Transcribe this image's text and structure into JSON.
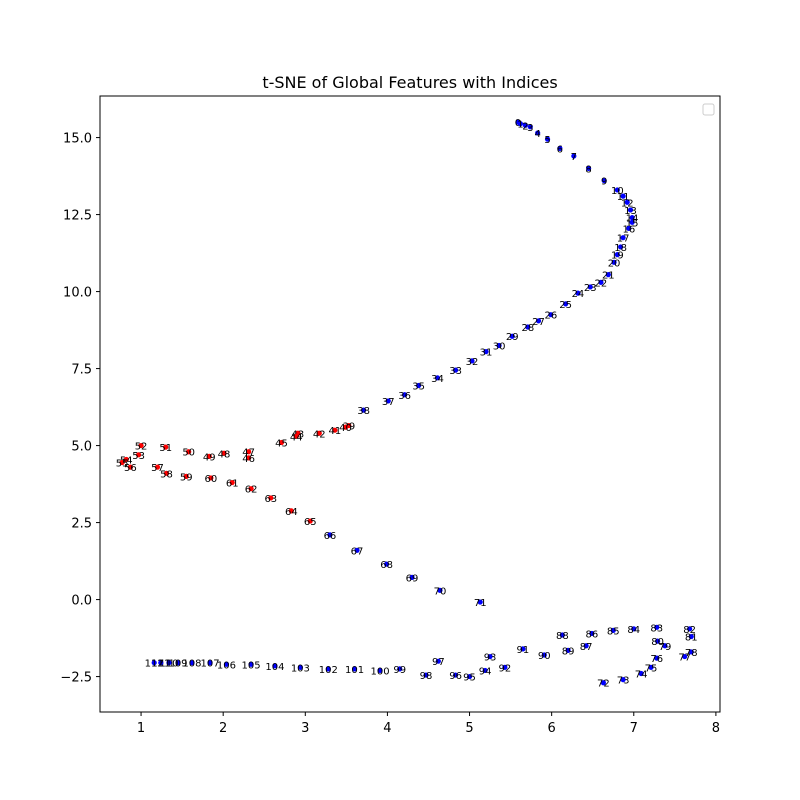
{
  "chart_data": {
    "type": "scatter",
    "title": "t-SNE of Global Features with Indices",
    "xlabel": "",
    "ylabel": "",
    "xlim": [
      0.5,
      8.05
    ],
    "ylim": [
      -3.65,
      16.35
    ],
    "xticks": [
      1,
      2,
      3,
      4,
      5,
      6,
      7,
      8
    ],
    "xtick_labels": [
      "1",
      "2",
      "3",
      "4",
      "5",
      "6",
      "7",
      "8"
    ],
    "yticks": [
      -2.5,
      0.0,
      2.5,
      5.0,
      7.5,
      10.0,
      12.5,
      15.0
    ],
    "ytick_labels": [
      "−2.5",
      "0.0",
      "2.5",
      "5.0",
      "7.5",
      "10.0",
      "12.5",
      "15.0"
    ],
    "grid": false,
    "legend": "top-right (empty)",
    "colors": {
      "blue": "#0000ff",
      "red": "#ff0000",
      "axis": "#000000"
    },
    "x": [
      5.59,
      5.62,
      5.68,
      5.74,
      5.83,
      5.95,
      6.1,
      6.27,
      6.45,
      6.64,
      6.8,
      6.87,
      6.92,
      6.96,
      6.98,
      6.98,
      6.94,
      6.87,
      6.84,
      6.8,
      6.76,
      6.69,
      6.6,
      6.47,
      6.32,
      6.17,
      5.99,
      5.84,
      5.71,
      5.52,
      5.36,
      5.2,
      5.03,
      4.83,
      4.61,
      4.38,
      4.21,
      4.01,
      3.71,
      3.53,
      3.49,
      3.36,
      3.17,
      2.91,
      2.89,
      2.71,
      2.31,
      2.31,
      2.01,
      1.83,
      1.58,
      1.3,
      1.0,
      0.97,
      0.82,
      0.77,
      0.87,
      1.2,
      1.31,
      1.55,
      1.85,
      2.11,
      2.34,
      2.58,
      2.83,
      3.06,
      3.3,
      3.63,
      3.99,
      4.3,
      4.64,
      5.13,
      6.63,
      6.87,
      7.09,
      7.21,
      7.28,
      7.62,
      7.7,
      7.38,
      7.29,
      7.7,
      7.68,
      7.28,
      7.0,
      6.75,
      6.49,
      6.42,
      6.13,
      6.2,
      5.91,
      5.65,
      5.43,
      5.25,
      5.19,
      5.0,
      4.83,
      4.62,
      4.47,
      4.15,
      3.91,
      3.6,
      3.28,
      2.94,
      2.63,
      2.34,
      2.04,
      1.84,
      1.62,
      1.45,
      1.34,
      1.24,
      1.16
    ],
    "y": [
      15.5,
      15.45,
      15.4,
      15.35,
      15.15,
      14.95,
      14.65,
      14.4,
      14.0,
      13.6,
      13.3,
      13.1,
      12.9,
      12.65,
      12.4,
      12.25,
      12.05,
      11.75,
      11.45,
      11.2,
      10.95,
      10.55,
      10.3,
      10.15,
      9.95,
      9.6,
      9.25,
      9.05,
      8.85,
      8.55,
      8.25,
      8.05,
      7.75,
      7.45,
      7.2,
      6.95,
      6.65,
      6.45,
      6.15,
      5.65,
      5.6,
      5.5,
      5.4,
      5.4,
      5.3,
      5.1,
      4.6,
      4.8,
      4.75,
      4.65,
      4.8,
      4.95,
      5.0,
      4.7,
      4.55,
      4.45,
      4.3,
      4.3,
      4.1,
      4.0,
      3.95,
      3.8,
      3.6,
      3.3,
      2.88,
      2.55,
      2.1,
      1.6,
      1.15,
      0.72,
      0.3,
      -0.08,
      -2.7,
      -2.6,
      -2.4,
      -2.2,
      -1.9,
      -1.85,
      -1.7,
      -1.5,
      -1.35,
      -1.2,
      -0.95,
      -0.9,
      -0.95,
      -1.0,
      -1.1,
      -1.5,
      -1.15,
      -1.65,
      -1.8,
      -1.6,
      -2.2,
      -1.85,
      -2.3,
      -2.5,
      -2.45,
      -2.0,
      -2.45,
      -2.25,
      -2.3,
      -2.25,
      -2.25,
      -2.2,
      -2.15,
      -2.1,
      -2.1,
      -2.05,
      -2.05,
      -2.05,
      -2.05,
      -2.05,
      -2.05
    ],
    "labels": [
      "0",
      "1",
      "2",
      "3",
      "4",
      "5",
      "6",
      "7",
      "8",
      "9",
      "10",
      "11",
      "12",
      "13",
      "14",
      "15",
      "16",
      "17",
      "18",
      "19",
      "20",
      "21",
      "22",
      "23",
      "24",
      "25",
      "26",
      "27",
      "28",
      "29",
      "30",
      "31",
      "32",
      "33",
      "34",
      "35",
      "36",
      "37",
      "38",
      "39",
      "40",
      "41",
      "42",
      "43",
      "44",
      "45",
      "46",
      "47",
      "48",
      "49",
      "50",
      "51",
      "52",
      "53",
      "54",
      "55",
      "56",
      "57",
      "58",
      "59",
      "60",
      "61",
      "62",
      "63",
      "64",
      "65",
      "66",
      "67",
      "68",
      "69",
      "70",
      "71",
      "72",
      "73",
      "74",
      "75",
      "76",
      "77",
      "78",
      "79",
      "80",
      "81",
      "82",
      "83",
      "84",
      "85",
      "86",
      "87",
      "88",
      "89",
      "90",
      "91",
      "92",
      "93",
      "94",
      "95",
      "96",
      "97",
      "98",
      "99",
      "100",
      "101",
      "102",
      "103",
      "104",
      "105",
      "106",
      "107",
      "108",
      "109",
      "110",
      "111",
      "112"
    ],
    "point_colors": [
      "blue",
      "blue",
      "blue",
      "blue",
      "blue",
      "blue",
      "blue",
      "blue",
      "blue",
      "blue",
      "blue",
      "blue",
      "blue",
      "blue",
      "blue",
      "blue",
      "blue",
      "blue",
      "blue",
      "blue",
      "blue",
      "blue",
      "blue",
      "blue",
      "blue",
      "blue",
      "blue",
      "blue",
      "blue",
      "blue",
      "blue",
      "blue",
      "blue",
      "blue",
      "blue",
      "blue",
      "blue",
      "blue",
      "blue",
      "red",
      "red",
      "red",
      "red",
      "red",
      "red",
      "red",
      "red",
      "red",
      "red",
      "red",
      "red",
      "red",
      "red",
      "red",
      "red",
      "red",
      "red",
      "red",
      "red",
      "red",
      "red",
      "red",
      "red",
      "red",
      "red",
      "red",
      "blue",
      "blue",
      "blue",
      "blue",
      "blue",
      "blue",
      "blue",
      "blue",
      "blue",
      "blue",
      "blue",
      "blue",
      "blue",
      "blue",
      "blue",
      "blue",
      "blue",
      "blue",
      "blue",
      "blue",
      "blue",
      "blue",
      "blue",
      "blue",
      "blue",
      "blue",
      "blue",
      "blue",
      "blue",
      "blue",
      "blue",
      "blue",
      "blue",
      "blue",
      "blue",
      "blue",
      "blue",
      "blue",
      "blue",
      "blue",
      "blue",
      "blue",
      "blue",
      "blue",
      "blue",
      "blue",
      "blue"
    ]
  }
}
